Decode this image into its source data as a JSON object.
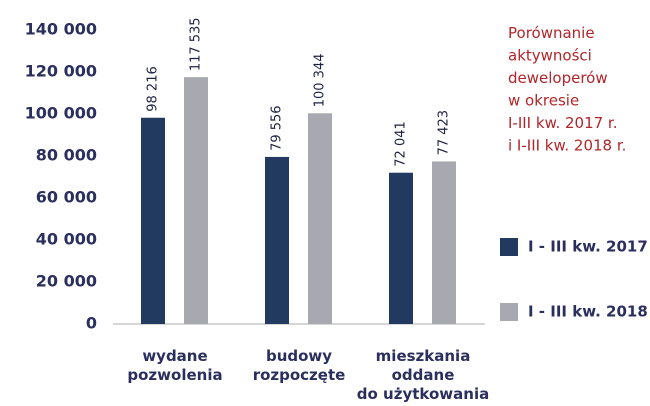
{
  "chart_data": {
    "type": "bar",
    "title": "Porównanie\naktywności\ndeweloperów\nw okresie\nI-III kw. 2017 r.\ni I-III kw. 2018 r.",
    "categories": [
      "wydane\npozwolenia",
      "budowy\nrozpoczęte",
      "mieszkania\noddane\ndo użytkowania"
    ],
    "series": [
      {
        "name": "I - III kw. 2017",
        "color": "#233a60",
        "values": [
          98216,
          79556,
          72041
        ],
        "value_labels": [
          "98 216",
          "79 556",
          "72 041"
        ]
      },
      {
        "name": "I - III kw. 2018",
        "color": "#a7a8b0",
        "values": [
          117535,
          100344,
          77423
        ],
        "value_labels": [
          "117 535",
          "100 344",
          "77 423"
        ]
      }
    ],
    "ylim": [
      0,
      140000
    ],
    "yticks": [
      0,
      {
        "value": 20000,
        "label": "20 000"
      },
      {
        "value": 40000,
        "label": "40 000"
      },
      {
        "value": 60000,
        "label": "60 000"
      },
      {
        "value": 80000,
        "label": "80 000"
      },
      {
        "value": 100000,
        "label": "100 000"
      },
      {
        "value": 120000,
        "label": "120 000"
      },
      {
        "value": 140000,
        "label": "140 000"
      }
    ],
    "grid": false
  }
}
